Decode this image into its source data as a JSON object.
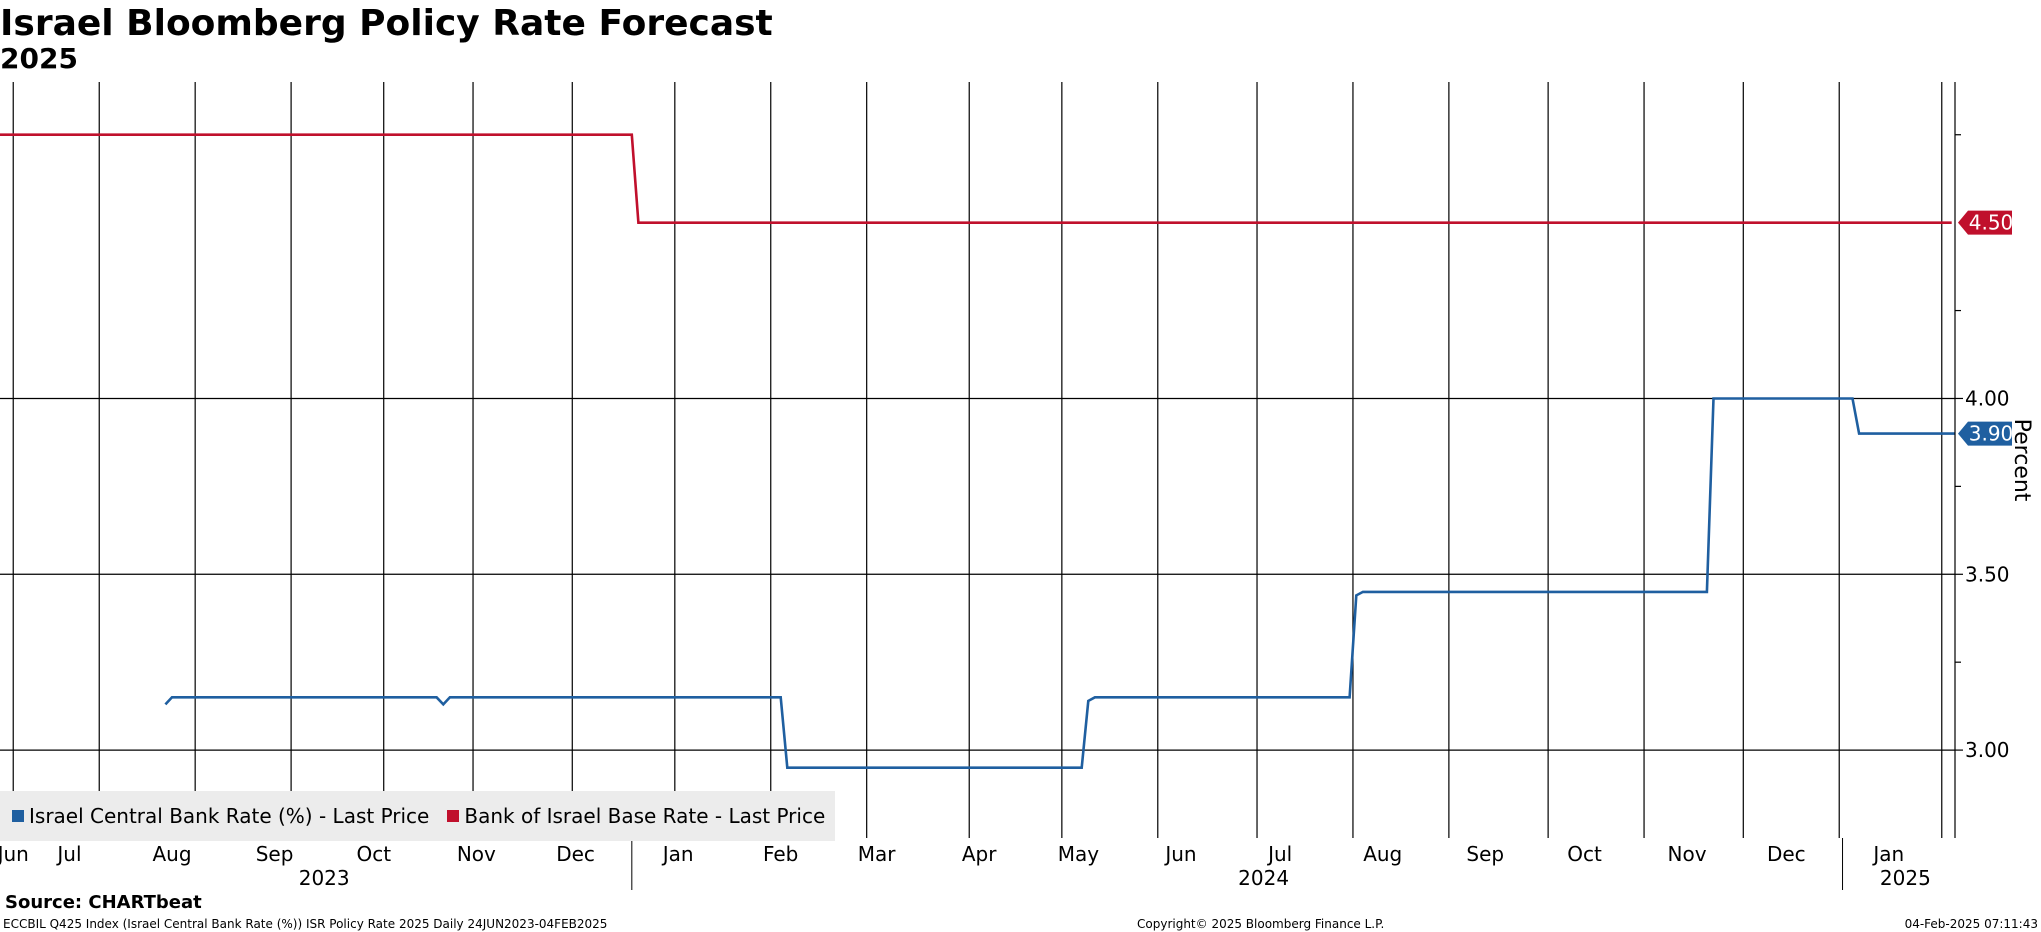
{
  "header": {
    "title": "Israel Bloomberg Policy Rate Forecast",
    "subtitle": "2025"
  },
  "legend": [
    {
      "label": "Israel Central Bank Rate (%) - Last Price",
      "color": "#1f5fa0"
    },
    {
      "label": "Bank of Israel Base Rate - Last Price",
      "color": "#c0102c"
    }
  ],
  "footer": {
    "source": "Source: CHARTbeat",
    "description": "ECCBIL Q425 Index (Israel Central Bank Rate (%)) ISR Policy Rate 2025  Daily 24JUN2023-04FEB2025",
    "copyright": "Copyright© 2025 Bloomberg Finance L.P.",
    "timestamp": "04-Feb-2025 07:11:43"
  },
  "chart_data": {
    "type": "line",
    "ylabel": "Percent",
    "ylim": [
      2.75,
      4.9
    ],
    "xlim": [
      "2023-06-24",
      "2025-02-04"
    ],
    "yticks": [
      {
        "value": 3.0,
        "label": "3.00"
      },
      {
        "value": 3.5,
        "label": "3.50"
      },
      {
        "value": 4.0,
        "label": "4.00"
      }
    ],
    "yminor": [
      3.25,
      3.75,
      4.25,
      4.75
    ],
    "month_labels": [
      {
        "label": "Jun",
        "date": "2023-06-28"
      },
      {
        "label": "Jul",
        "date": "2023-07-15"
      },
      {
        "label": "Aug",
        "date": "2023-08-15"
      },
      {
        "label": "Sep",
        "date": "2023-09-15"
      },
      {
        "label": "Oct",
        "date": "2023-10-15"
      },
      {
        "label": "Nov",
        "date": "2023-11-15"
      },
      {
        "label": "Dec",
        "date": "2023-12-15"
      },
      {
        "label": "Jan",
        "date": "2024-01-15"
      },
      {
        "label": "Feb",
        "date": "2024-02-15"
      },
      {
        "label": "Mar",
        "date": "2024-03-15"
      },
      {
        "label": "Apr",
        "date": "2024-04-15"
      },
      {
        "label": "May",
        "date": "2024-05-15"
      },
      {
        "label": "Jun",
        "date": "2024-06-15"
      },
      {
        "label": "Jul",
        "date": "2024-07-15"
      },
      {
        "label": "Aug",
        "date": "2024-08-15"
      },
      {
        "label": "Sep",
        "date": "2024-09-15"
      },
      {
        "label": "Oct",
        "date": "2024-10-15"
      },
      {
        "label": "Nov",
        "date": "2024-11-15"
      },
      {
        "label": "Dec",
        "date": "2024-12-15"
      },
      {
        "label": "Jan",
        "date": "2025-01-15"
      }
    ],
    "gridlines": [
      "2023-06-28",
      "2023-07-24",
      "2023-08-22",
      "2023-09-20",
      "2023-10-18",
      "2023-11-14",
      "2023-12-14",
      "2024-01-14",
      "2024-02-12",
      "2024-03-12",
      "2024-04-12",
      "2024-05-10",
      "2024-06-08",
      "2024-07-08",
      "2024-08-06",
      "2024-09-04",
      "2024-10-04",
      "2024-11-02",
      "2024-12-02",
      "2024-12-31",
      "2025-01-31"
    ],
    "year_labels": [
      {
        "label": "2023",
        "date": "2023-09-30"
      },
      {
        "label": "2024",
        "date": "2024-07-10"
      },
      {
        "label": "2025",
        "date": "2025-01-20"
      }
    ],
    "year_separators": [
      "2024-01-01",
      "2025-01-01"
    ],
    "series": [
      {
        "name": "Israel Central Bank Rate (%) - Last Price",
        "color": "#1f5fa0",
        "last_label": "3.90",
        "points": [
          [
            "2023-08-13",
            3.13
          ],
          [
            "2023-08-15",
            3.15
          ],
          [
            "2023-11-03",
            3.15
          ],
          [
            "2023-11-05",
            3.13
          ],
          [
            "2023-11-07",
            3.15
          ],
          [
            "2024-02-15",
            3.15
          ],
          [
            "2024-02-17",
            2.95
          ],
          [
            "2024-05-16",
            2.95
          ],
          [
            "2024-05-18",
            3.14
          ],
          [
            "2024-05-20",
            3.15
          ],
          [
            "2024-08-05",
            3.15
          ],
          [
            "2024-08-07",
            3.44
          ],
          [
            "2024-08-09",
            3.45
          ],
          [
            "2024-11-21",
            3.45
          ],
          [
            "2024-11-23",
            4.0
          ],
          [
            "2025-01-04",
            4.0
          ],
          [
            "2025-01-06",
            3.9
          ],
          [
            "2025-02-04",
            3.9
          ]
        ]
      },
      {
        "name": "Bank of Israel Base Rate - Last Price",
        "color": "#c0102c",
        "last_label": "4.50",
        "points": [
          [
            "2023-06-24",
            4.75
          ],
          [
            "2024-01-01",
            4.75
          ],
          [
            "2024-01-03",
            4.5
          ],
          [
            "2025-02-03",
            4.5
          ]
        ]
      }
    ]
  }
}
